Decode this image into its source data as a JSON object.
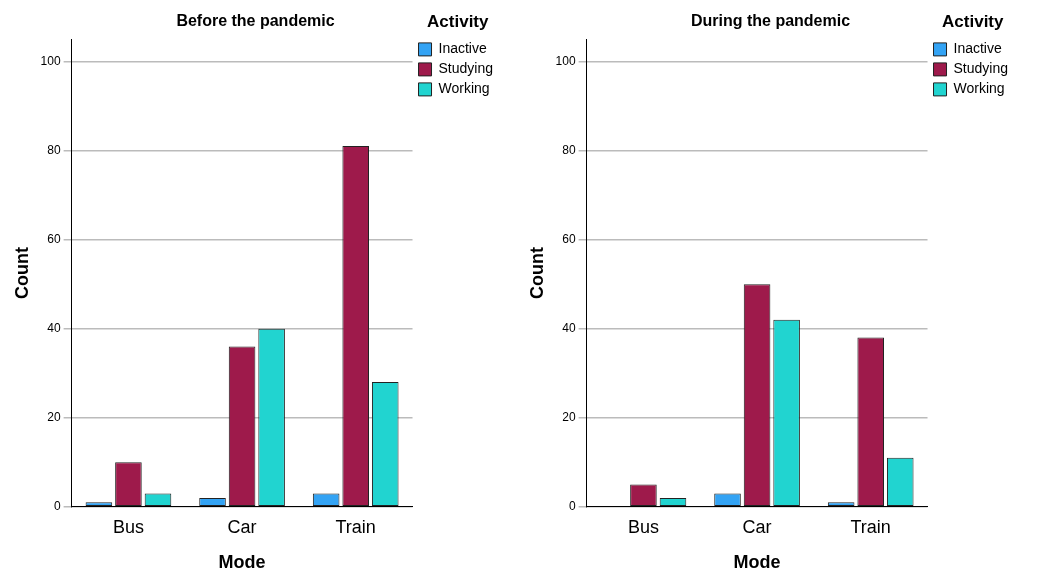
{
  "chart_data": [
    {
      "type": "bar",
      "title": "Before the pandemic",
      "xlabel": "Mode",
      "ylabel": "Count",
      "legend_title": "Activity",
      "categories": [
        "Bus",
        "Car",
        "Train"
      ],
      "series": [
        {
          "name": "Inactive",
          "color": "#33a3f4",
          "values": [
            1,
            2,
            3
          ]
        },
        {
          "name": "Studying",
          "color": "#9e1a4b",
          "values": [
            10,
            36,
            81
          ]
        },
        {
          "name": "Working",
          "color": "#21d4d0",
          "values": [
            3,
            40,
            28
          ]
        }
      ],
      "ylim": [
        0,
        105
      ],
      "yticks": [
        0,
        20,
        40,
        60,
        80,
        100
      ],
      "grid": "y",
      "legend": "top right"
    },
    {
      "type": "bar",
      "title": "During the pandemic",
      "xlabel": "Mode",
      "ylabel": "Count",
      "legend_title": "Activity",
      "categories": [
        "Bus",
        "Car",
        "Train"
      ],
      "series": [
        {
          "name": "Inactive",
          "color": "#33a3f4",
          "values": [
            null,
            3,
            1
          ]
        },
        {
          "name": "Studying",
          "color": "#9e1a4b",
          "values": [
            5,
            50,
            38
          ]
        },
        {
          "name": "Working",
          "color": "#21d4d0",
          "values": [
            2,
            42,
            11
          ]
        }
      ],
      "ylim": [
        0,
        105
      ],
      "yticks": [
        0,
        20,
        40,
        60,
        80,
        100
      ],
      "grid": "y",
      "legend": "top right"
    }
  ]
}
